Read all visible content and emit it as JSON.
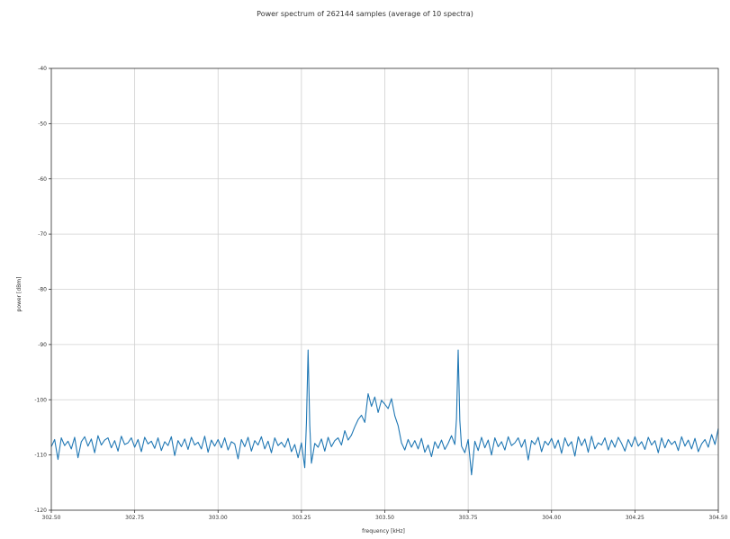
{
  "chart_data": {
    "type": "line",
    "title": "Power spectrum of 262144 samples (average of 10 spectra)",
    "xlabel": "frequency [kHz]",
    "ylabel": "power [dBm]",
    "xlim": [
      302.5,
      304.5
    ],
    "ylim": [
      -120,
      -40
    ],
    "x_ticks": [
      302.5,
      302.75,
      303.0,
      303.25,
      303.5,
      303.75,
      304.0,
      304.25,
      304.5
    ],
    "x_tick_labels": [
      "302.50",
      "302.75",
      "303.00",
      "303.25",
      "303.50",
      "303.75",
      "304.00",
      "304.25",
      "304.50"
    ],
    "y_ticks": [
      -120,
      -110,
      -100,
      -90,
      -80,
      -70,
      -60,
      -50,
      -40
    ],
    "y_tick_labels": [
      "-120",
      "-110",
      "-100",
      "-90",
      "-80",
      "-70",
      "-60",
      "-50",
      "-40"
    ],
    "grid": true,
    "color": "#1f77b4",
    "series": [
      {
        "x": [
          302.5,
          302.51,
          302.52,
          302.53,
          302.54,
          302.55,
          302.56,
          302.57,
          302.58,
          302.59,
          302.6,
          302.61,
          302.62,
          302.63,
          302.64,
          302.65,
          302.66,
          302.67,
          302.68,
          302.69,
          302.7,
          302.71,
          302.72,
          302.73,
          302.74,
          302.75,
          302.76,
          302.77,
          302.78,
          302.79,
          302.8,
          302.81,
          302.82,
          302.83,
          302.84,
          302.85,
          302.86,
          302.87,
          302.88,
          302.89,
          302.9,
          302.91,
          302.92,
          302.93,
          302.94,
          302.95,
          302.96,
          302.97,
          302.98,
          302.99,
          303.0,
          303.01,
          303.02,
          303.03,
          303.04,
          303.05,
          303.06,
          303.07,
          303.08,
          303.09,
          303.1,
          303.11,
          303.12,
          303.13,
          303.14,
          303.15,
          303.16,
          303.17,
          303.18,
          303.19,
          303.2,
          303.21,
          303.22,
          303.23,
          303.24,
          303.25,
          303.26,
          303.265,
          303.27,
          303.275,
          303.28,
          303.29,
          303.3,
          303.31,
          303.32,
          303.33,
          303.34,
          303.35,
          303.36,
          303.37,
          303.38,
          303.39,
          303.4,
          303.41,
          303.42,
          303.43,
          303.44,
          303.45,
          303.46,
          303.47,
          303.48,
          303.49,
          303.5,
          303.51,
          303.52,
          303.53,
          303.54,
          303.55,
          303.56,
          303.57,
          303.58,
          303.59,
          303.6,
          303.61,
          303.62,
          303.63,
          303.64,
          303.65,
          303.66,
          303.67,
          303.68,
          303.69,
          303.7,
          303.71,
          303.715,
          303.72,
          303.725,
          303.73,
          303.74,
          303.75,
          303.76,
          303.77,
          303.78,
          303.79,
          303.8,
          303.81,
          303.82,
          303.83,
          303.84,
          303.85,
          303.86,
          303.87,
          303.88,
          303.89,
          303.9,
          303.91,
          303.92,
          303.93,
          303.94,
          303.95,
          303.96,
          303.97,
          303.98,
          303.99,
          304.0,
          304.01,
          304.02,
          304.03,
          304.04,
          304.05,
          304.06,
          304.07,
          304.08,
          304.09,
          304.1,
          304.11,
          304.12,
          304.13,
          304.14,
          304.15,
          304.16,
          304.17,
          304.18,
          304.19,
          304.2,
          304.21,
          304.22,
          304.23,
          304.24,
          304.25,
          304.26,
          304.27,
          304.28,
          304.29,
          304.3,
          304.31,
          304.32,
          304.33,
          304.34,
          304.35,
          304.36,
          304.37,
          304.38,
          304.39,
          304.4,
          304.41,
          304.42,
          304.43,
          304.44,
          304.45,
          304.46,
          304.47,
          304.48,
          304.49,
          304.5
        ],
        "y": [
          -108.5,
          -107.2,
          -110.8,
          -106.9,
          -108.3,
          -107.5,
          -108.9,
          -106.8,
          -110.5,
          -107.6,
          -106.7,
          -108.4,
          -107.1,
          -109.6,
          -106.5,
          -108.2,
          -107.3,
          -106.9,
          -108.7,
          -107.4,
          -109.3,
          -106.6,
          -108.1,
          -107.8,
          -106.9,
          -108.6,
          -107.2,
          -109.4,
          -106.8,
          -108.0,
          -107.5,
          -108.8,
          -106.9,
          -109.2,
          -107.6,
          -108.3,
          -106.7,
          -110.1,
          -107.4,
          -108.5,
          -107.1,
          -109.0,
          -106.8,
          -108.2,
          -107.7,
          -108.9,
          -106.6,
          -109.5,
          -107.3,
          -108.4,
          -107.2,
          -108.7,
          -106.9,
          -109.1,
          -107.6,
          -108.0,
          -110.7,
          -107.2,
          -108.5,
          -106.8,
          -109.3,
          -107.4,
          -108.2,
          -106.7,
          -108.9,
          -107.5,
          -109.6,
          -106.9,
          -108.3,
          -107.7,
          -108.6,
          -107.0,
          -109.4,
          -108.1,
          -110.5,
          -107.8,
          -112.3,
          -104.2,
          -91.0,
          -104.6,
          -111.5,
          -107.9,
          -108.6,
          -107.1,
          -109.3,
          -106.8,
          -108.5,
          -107.4,
          -106.9,
          -108.2,
          -105.6,
          -107.3,
          -106.4,
          -104.9,
          -103.6,
          -102.8,
          -104.1,
          -98.9,
          -101.2,
          -99.5,
          -102.3,
          -100.1,
          -100.8,
          -101.6,
          -99.8,
          -102.9,
          -104.7,
          -107.8,
          -109.1,
          -107.2,
          -108.6,
          -107.4,
          -108.9,
          -107.0,
          -109.5,
          -108.2,
          -110.3,
          -107.6,
          -108.8,
          -107.3,
          -109.0,
          -107.9,
          -106.5,
          -108.1,
          -103.4,
          -91.0,
          -103.8,
          -108.4,
          -109.6,
          -107.2,
          -113.6,
          -107.5,
          -109.2,
          -106.8,
          -108.7,
          -107.3,
          -110.0,
          -106.9,
          -108.5,
          -107.6,
          -109.1,
          -106.7,
          -108.3,
          -107.8,
          -106.9,
          -108.6,
          -107.2,
          -110.9,
          -107.4,
          -108.1,
          -106.8,
          -109.4,
          -107.5,
          -108.2,
          -107.0,
          -108.8,
          -107.3,
          -109.7,
          -106.9,
          -108.4,
          -107.6,
          -110.2,
          -106.7,
          -108.3,
          -107.1,
          -109.5,
          -106.6,
          -108.9,
          -107.8,
          -108.2,
          -106.9,
          -109.1,
          -107.3,
          -108.6,
          -106.8,
          -107.9,
          -109.3,
          -107.2,
          -108.5,
          -106.7,
          -108.4,
          -107.6,
          -109.0,
          -106.8,
          -108.2,
          -107.4,
          -109.6,
          -106.9,
          -108.7,
          -107.2,
          -108.1,
          -107.5,
          -109.2,
          -106.7,
          -108.4,
          -107.3,
          -108.9,
          -107.0,
          -109.4,
          -108.0,
          -107.2,
          -108.6,
          -106.3,
          -108.1,
          -105.2
        ]
      }
    ]
  }
}
